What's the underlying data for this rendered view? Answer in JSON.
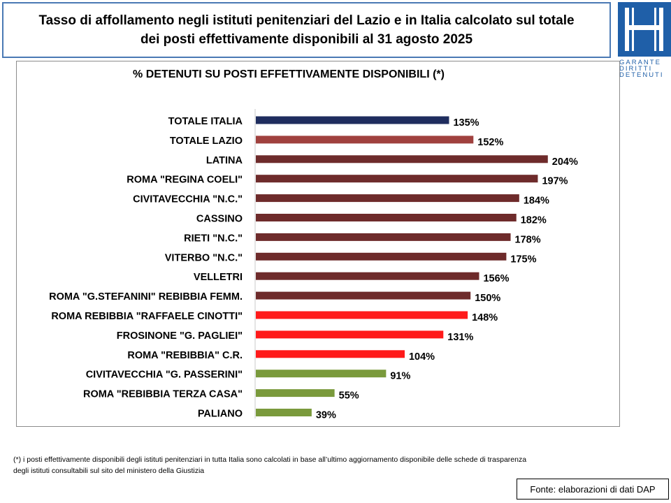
{
  "header": {
    "title_line1": "Tasso di affollamento negli istituti penitenziari del Lazio e in Italia calcolato sul totale",
    "title_line2": "dei posti effettivamente disponibili al 31 agosto 2025"
  },
  "logo": {
    "line1": "GARANTE",
    "line2": "DIRITTI",
    "line3": "DETENUTI",
    "color": "#1f5fa8"
  },
  "chart_data": {
    "type": "bar",
    "orientation": "horizontal",
    "title": "% DETENUTI SU POSTI EFFETTIVAMENTE DISPONIBILI (*)",
    "xlabel": "",
    "ylabel": "",
    "grid": false,
    "xlim": [
      0,
      210
    ],
    "categories": [
      "TOTALE ITALIA",
      "TOTALE LAZIO",
      "LATINA",
      "ROMA \"REGINA COELI\"",
      "CIVITAVECCHIA \"N.C.\"",
      "CASSINO",
      "RIETI \"N.C.\"",
      "VITERBO \"N.C.\"",
      "VELLETRI",
      "ROMA \"G.STEFANINI\" REBIBBIA FEMM.",
      "ROMA REBIBBIA \"RAFFAELE CINOTTI\"",
      "FROSINONE \"G. PAGLIEI\"",
      "ROMA \"REBIBBIA\" C.R.",
      "CIVITAVECCHIA \"G. PASSERINI\"",
      "ROMA \"REBIBBIA TERZA CASA\"",
      "PALIANO"
    ],
    "values": [
      135,
      152,
      204,
      197,
      184,
      182,
      178,
      175,
      156,
      150,
      148,
      131,
      104,
      91,
      55,
      39
    ],
    "value_labels": [
      "135%",
      "152%",
      "204%",
      "197%",
      "184%",
      "182%",
      "178%",
      "175%",
      "156%",
      "150%",
      "148%",
      "131%",
      "104%",
      "91%",
      "55%",
      "39%"
    ],
    "colors": [
      "#1f2d5e",
      "#a0413e",
      "#6e2b2b",
      "#6e2b2b",
      "#6e2b2b",
      "#6e2b2b",
      "#6e2b2b",
      "#6e2b2b",
      "#6e2b2b",
      "#6e2b2b",
      "#ff1a1a",
      "#ff1a1a",
      "#ff1a1a",
      "#7a9a3c",
      "#7a9a3c",
      "#7a9a3c"
    ]
  },
  "footnote": {
    "line1": "(*) i posti effettivamente disponibili  degli istituti penitenziari in tutta Italia sono calcolati in base all’ultimo aggiornamento disponibile  delle schede di trasparenza",
    "line2": "degli istituti consultabili sul sito del ministero della Giustizia"
  },
  "source": {
    "label": "Fonte: elaborazioni di dati DAP"
  }
}
